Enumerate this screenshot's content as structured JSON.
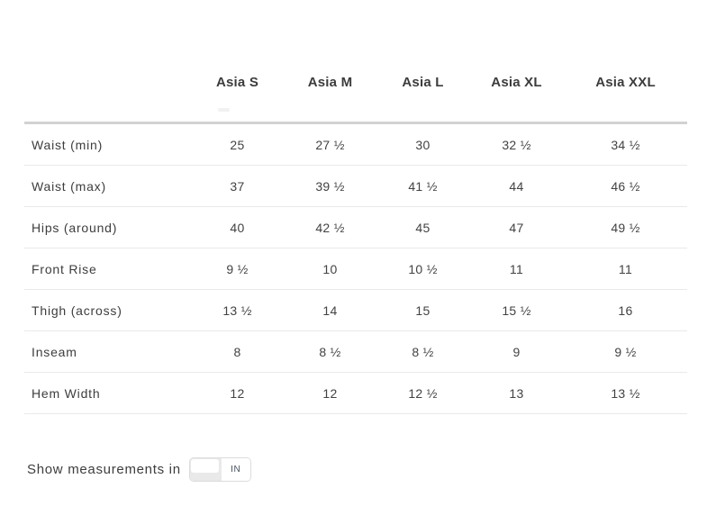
{
  "table": {
    "columns": [
      "Asia S",
      "Asia M",
      "Asia L",
      "Asia XL",
      "Asia XXL"
    ],
    "rows": [
      {
        "label": "Waist (min)",
        "values": [
          "25",
          "27 ½",
          "30",
          "32 ½",
          "34 ½"
        ]
      },
      {
        "label": "Waist (max)",
        "values": [
          "37",
          "39 ½",
          "41 ½",
          "44",
          "46 ½"
        ]
      },
      {
        "label": "Hips (around)",
        "values": [
          "40",
          "42 ½",
          "45",
          "47",
          "49 ½"
        ]
      },
      {
        "label": "Front Rise",
        "values": [
          "9 ½",
          "10",
          "10 ½",
          "11",
          "11"
        ]
      },
      {
        "label": "Thigh (across)",
        "values": [
          "13 ½",
          "14",
          "15",
          "15 ½",
          "16"
        ]
      },
      {
        "label": "Inseam",
        "values": [
          "8",
          "8 ½",
          "8 ½",
          "9",
          "9 ½"
        ]
      },
      {
        "label": "Hem Width",
        "values": [
          "12",
          "12",
          "12 ½",
          "13",
          "13 ½"
        ]
      }
    ]
  },
  "footer": {
    "label": "Show measurements in",
    "unit_label": "IN"
  },
  "colors": {
    "text": "#3d3d3d",
    "header_divider": "#d2d2d2",
    "row_divider": "#e9e9e9",
    "toggle_border": "#dcdcdc",
    "toggle_fill": "#e9e9e9",
    "unit_text": "#47525d"
  }
}
